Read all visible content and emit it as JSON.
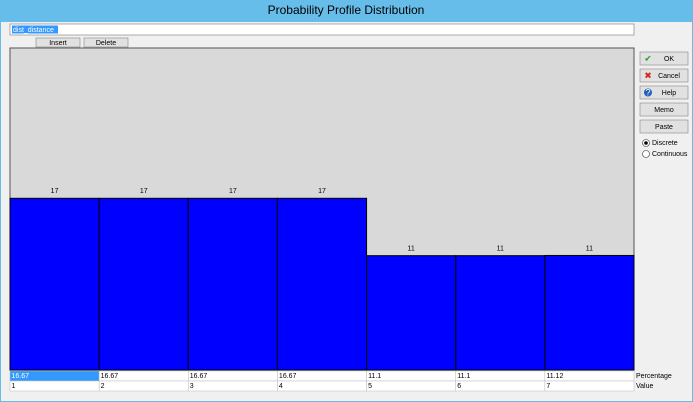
{
  "window": {
    "title": "Probability Profile Distribution"
  },
  "name_field": "dist_distance",
  "toolbar": {
    "insert": "Insert",
    "delete": "Delete"
  },
  "chart_data": {
    "type": "bar",
    "categories": [
      1,
      2,
      3,
      4,
      5,
      6,
      7
    ],
    "values": [
      16.67,
      16.67,
      16.67,
      16.67,
      11.1,
      11.1,
      11.12
    ],
    "value_labels": [
      "17",
      "17",
      "17",
      "17",
      "11",
      "11",
      "11"
    ],
    "color": "#0000ff"
  },
  "row_labels": [
    "Percentage",
    "Value"
  ],
  "buttons": [
    "OK",
    "Cancel",
    "Help",
    "Memo",
    "Paste"
  ],
  "options": {
    "items": [
      "Discrete",
      "Continuous"
    ],
    "selected": 0
  }
}
